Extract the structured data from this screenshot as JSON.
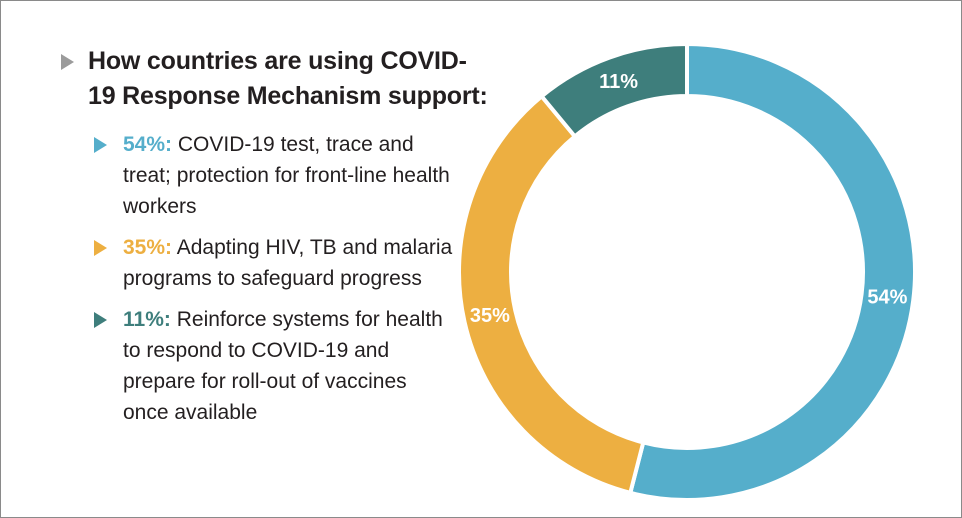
{
  "heading": "How countries are using COVID-19 Response Mechanism support:",
  "colors": {
    "heading_bullet": "#9b9b9b",
    "text": "#231f20",
    "border": "#8a8a8a"
  },
  "chart_data": {
    "type": "pie",
    "variant": "donut",
    "title": "How countries are using COVID-19 Response Mechanism support:",
    "start": "12 o'clock, clockwise",
    "slices": [
      {
        "label": "54%",
        "value": 54,
        "color": "#55aecb",
        "legend_pct": "54%:",
        "legend_text": "COVID-19 test, trace and treat; protection for front-line health workers"
      },
      {
        "label": "35%",
        "value": 35,
        "color": "#edaf41",
        "legend_pct": "35%:",
        "legend_text": "Adapting HIV, TB and malaria programs to safeguard progress"
      },
      {
        "label": "11%",
        "value": 11,
        "color": "#3e7e7c",
        "legend_pct": "11%:",
        "legend_text": "Reinforce systems for health to respond to COVID-19 and prepare for roll-out of vaccines once available"
      }
    ]
  }
}
